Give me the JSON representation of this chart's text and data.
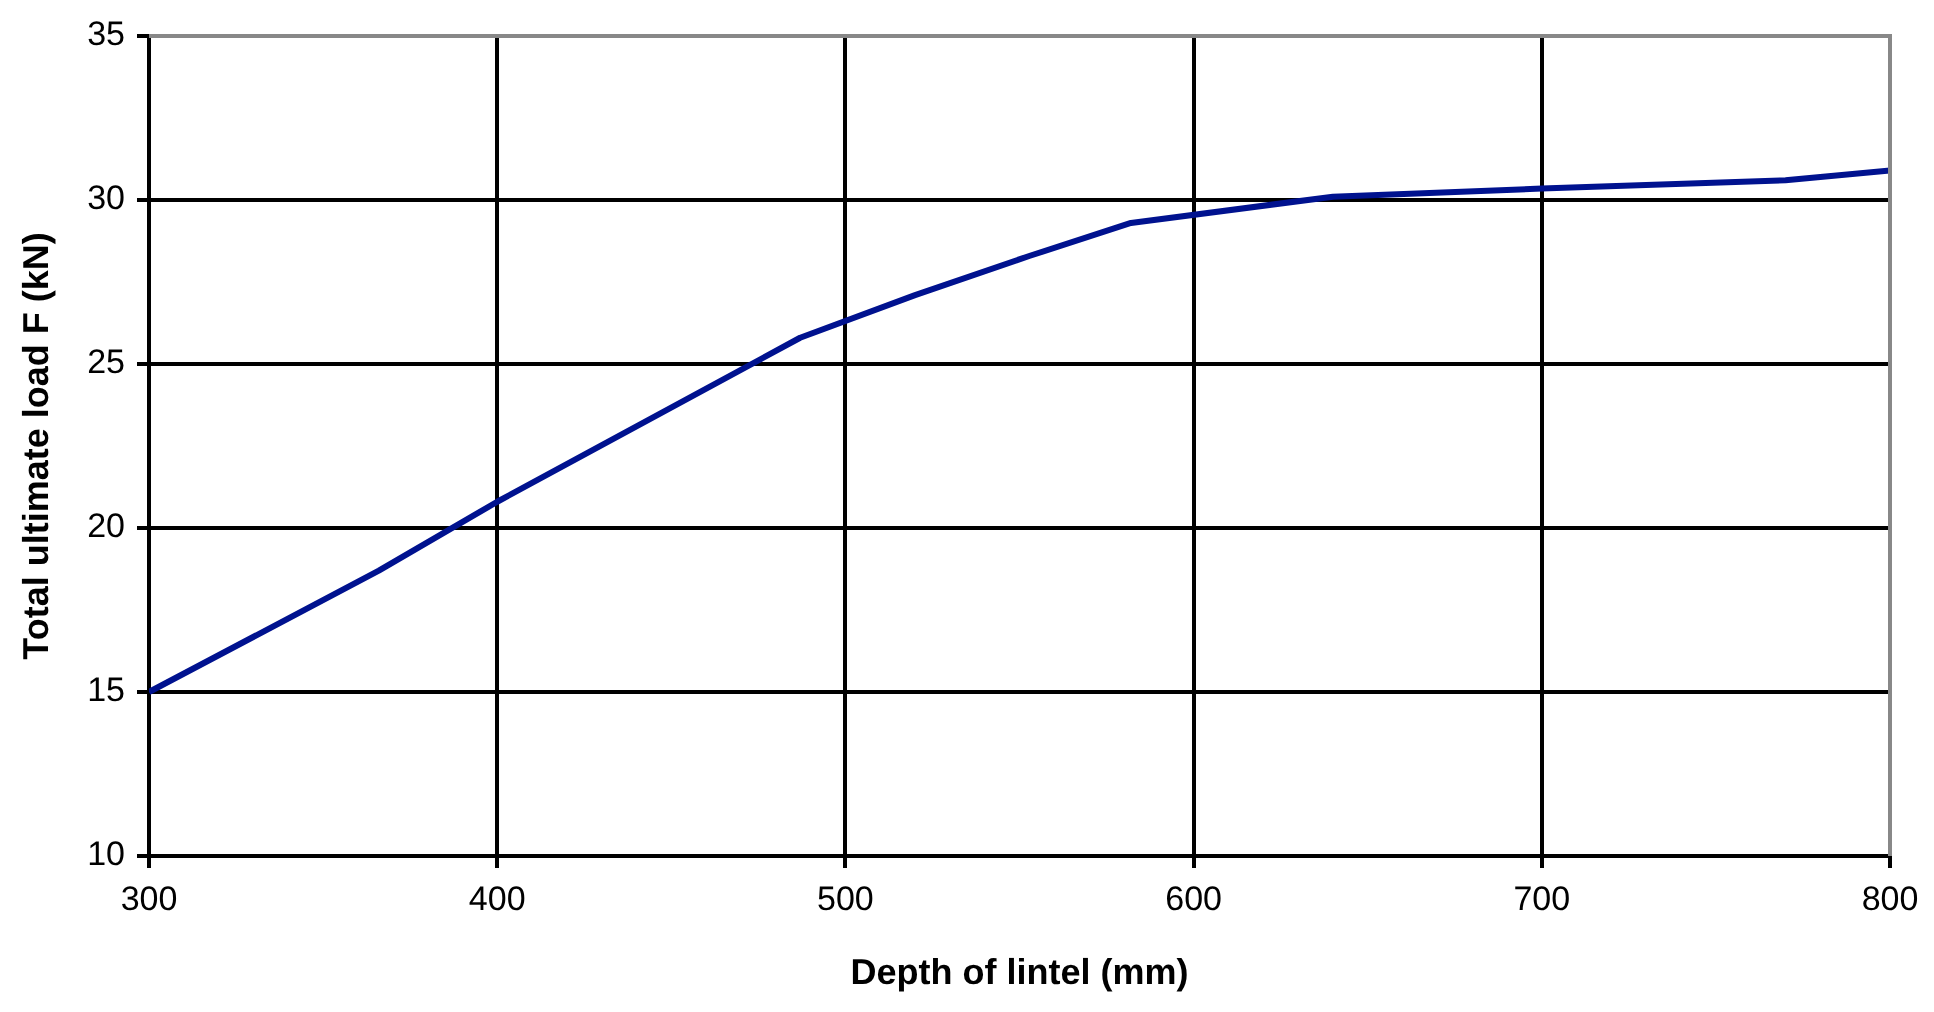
{
  "chart_data": {
    "type": "line",
    "xlabel": "Depth of lintel (mm)",
    "ylabel": "Total ultimate load F (kN)",
    "x": [
      300,
      366,
      400,
      487,
      520,
      553,
      582,
      640,
      700,
      770,
      800
    ],
    "series": [
      {
        "color": "#00128f",
        "values": [
          15.0,
          18.7,
          20.8,
          25.8,
          27.1,
          28.3,
          29.3,
          30.1,
          30.35,
          30.6,
          30.9
        ]
      }
    ],
    "xlim": [
      300,
      800
    ],
    "xticks": [
      300,
      400,
      500,
      600,
      700,
      800
    ],
    "ylim": [
      10,
      35
    ],
    "yticks": [
      10,
      15,
      20,
      25,
      30,
      35
    ],
    "grid": true,
    "legend": false,
    "marker": "none",
    "line_style": "solid"
  }
}
